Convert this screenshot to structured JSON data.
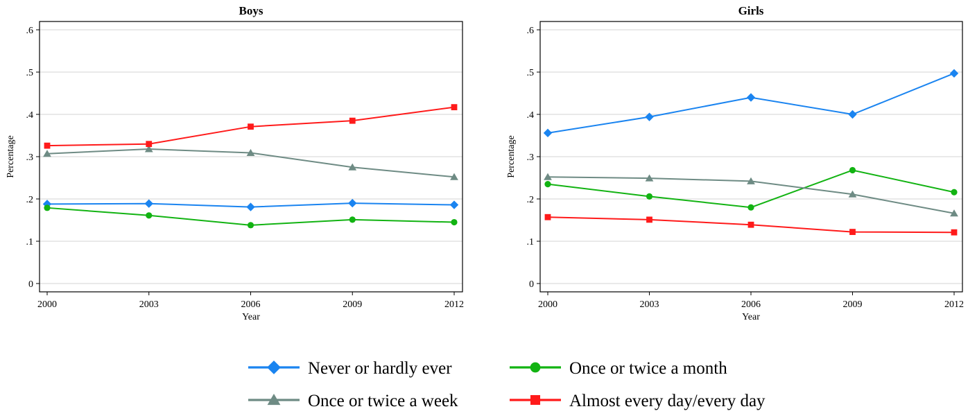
{
  "chart_data": [
    {
      "type": "line",
      "title": "Boys",
      "xlabel": "Year",
      "ylabel": "Percentage",
      "x": [
        2000,
        2003,
        2006,
        2009,
        2012
      ],
      "x_ticks": [
        "2000",
        "2003",
        "2006",
        "2009",
        "2012"
      ],
      "ylim": [
        0,
        0.6
      ],
      "y_ticks": [
        "0",
        ".1",
        ".2",
        ".3",
        ".4",
        ".5",
        ".6"
      ],
      "grid": true,
      "series": [
        {
          "name": "Never or hardly ever",
          "values": [
            0.188,
            0.189,
            0.181,
            0.19,
            0.186
          ]
        },
        {
          "name": "Once or twice a month",
          "values": [
            0.179,
            0.161,
            0.138,
            0.151,
            0.145
          ]
        },
        {
          "name": "Once or twice a week",
          "values": [
            0.307,
            0.318,
            0.309,
            0.275,
            0.252
          ]
        },
        {
          "name": "Almost every day/every day",
          "values": [
            0.326,
            0.33,
            0.371,
            0.385,
            0.417
          ]
        }
      ]
    },
    {
      "type": "line",
      "title": "Girls",
      "xlabel": "Year",
      "ylabel": "Percentage",
      "x": [
        2000,
        2003,
        2006,
        2009,
        2012
      ],
      "x_ticks": [
        "2000",
        "2003",
        "2006",
        "2009",
        "2012"
      ],
      "ylim": [
        0,
        0.6
      ],
      "y_ticks": [
        "0",
        ".1",
        ".2",
        ".3",
        ".4",
        ".5",
        ".6"
      ],
      "grid": true,
      "series": [
        {
          "name": "Never or hardly ever",
          "values": [
            0.356,
            0.394,
            0.44,
            0.4,
            0.497
          ]
        },
        {
          "name": "Once or twice a month",
          "values": [
            0.235,
            0.206,
            0.18,
            0.268,
            0.216
          ]
        },
        {
          "name": "Once or twice a week",
          "values": [
            0.252,
            0.249,
            0.242,
            0.211,
            0.166
          ]
        },
        {
          "name": "Almost every day/every day",
          "values": [
            0.157,
            0.151,
            0.139,
            0.122,
            0.121
          ]
        }
      ]
    }
  ],
  "legend": {
    "placement": "bottom",
    "items": [
      {
        "label": "Never or hardly ever",
        "color": "#1a84f0",
        "marker": "diamond"
      },
      {
        "label": "Once or twice a month",
        "color": "#12b312",
        "marker": "circle"
      },
      {
        "label": "Once or twice a week",
        "color": "#6e8b84",
        "marker": "triangle"
      },
      {
        "label": "Almost every day/every day",
        "color": "#ff1a1a",
        "marker": "square"
      }
    ]
  },
  "colors": {
    "never": "#1a84f0",
    "month": "#12b312",
    "week": "#6e8b84",
    "daily": "#ff1a1a",
    "grid": "#dcdcdc",
    "axis": "#000000"
  }
}
